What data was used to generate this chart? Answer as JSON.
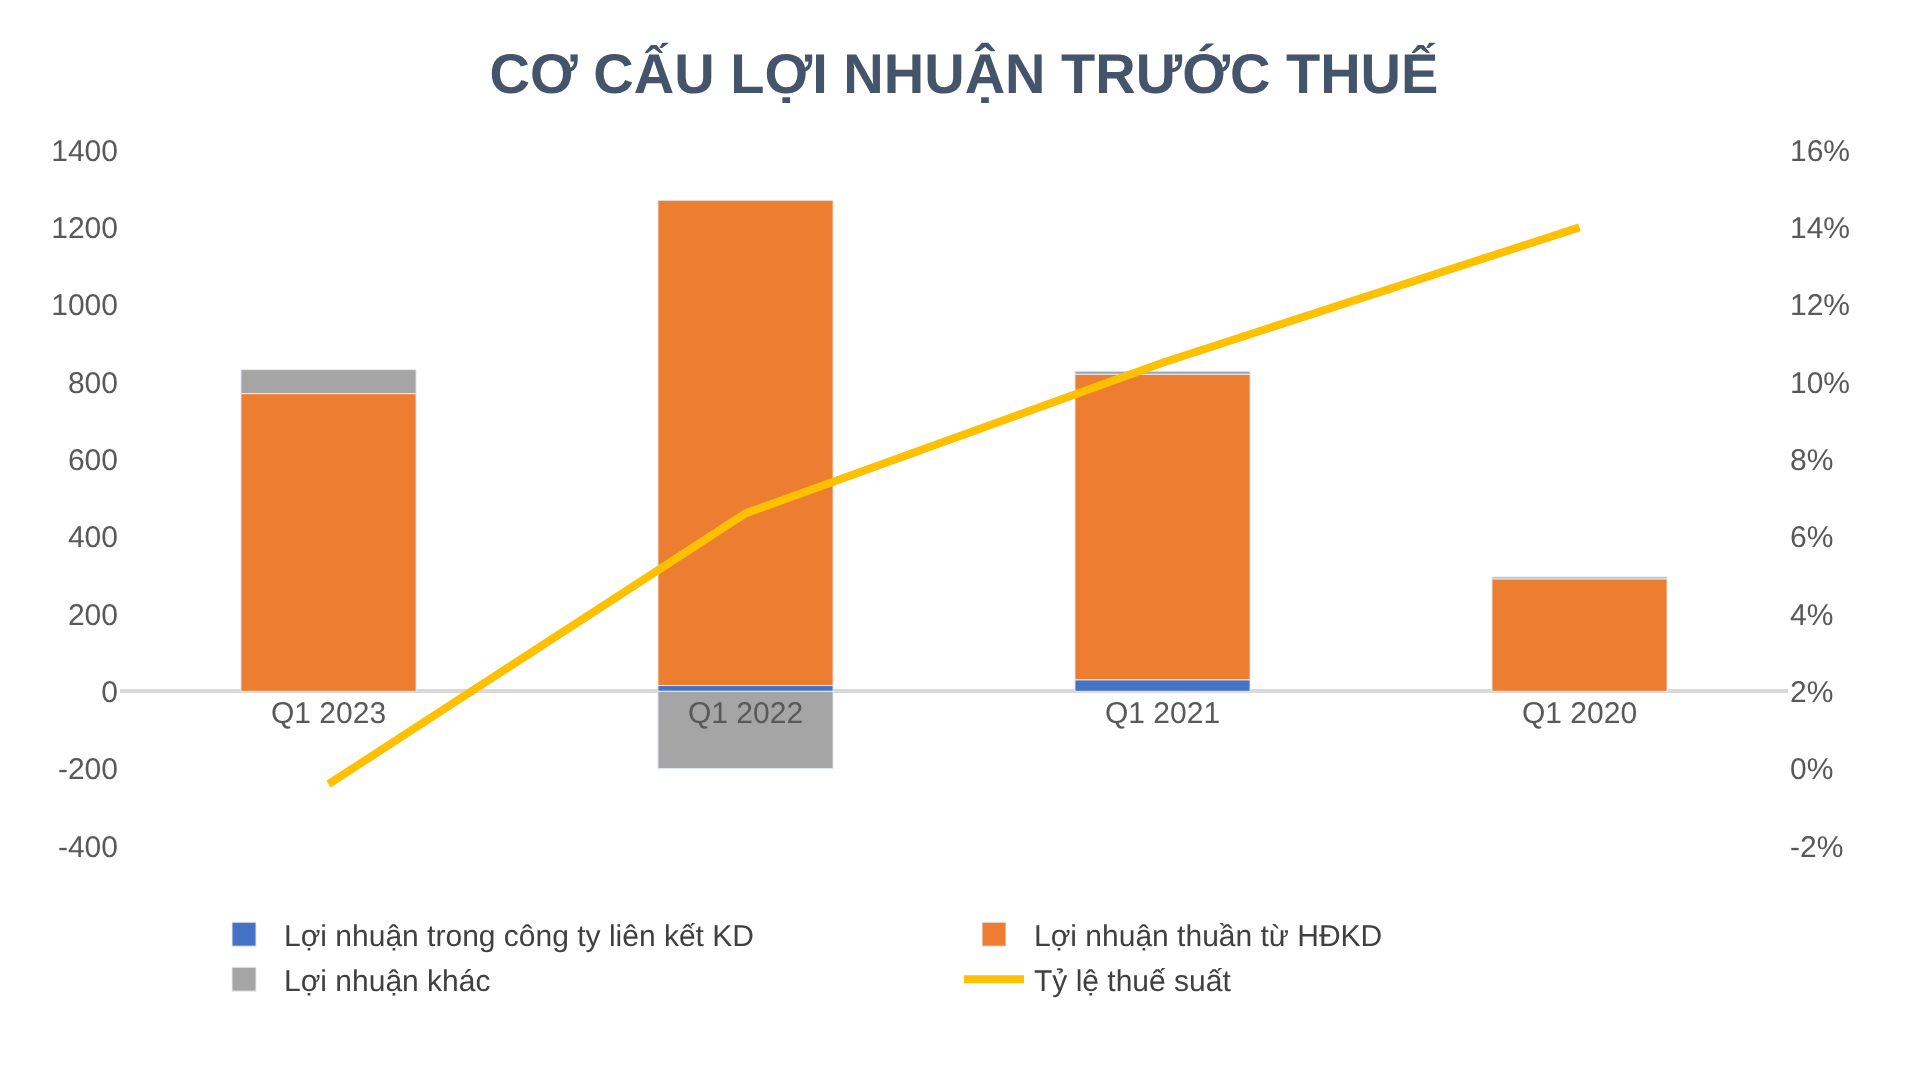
{
  "chart_data": {
    "type": "bar",
    "title": "CƠ CẤU LỢI NHUẬN TRƯỚC THUẾ",
    "stacked": true,
    "categories": [
      "Q1 2023",
      "Q1 2022",
      "Q1 2021",
      "Q1 2020"
    ],
    "series": [
      {
        "name": "Lợi nhuận trong công ty liên kết KD",
        "color": "#4472c4",
        "values": [
          0,
          15,
          30,
          0
        ]
      },
      {
        "name": "Lợi nhuận thuần từ HĐKD",
        "color": "#ed7d31",
        "values": [
          770,
          1255,
          790,
          291
        ]
      },
      {
        "name": "Lợi nhuận khác",
        "color": "#a5a5a5",
        "values": [
          62,
          -200,
          8,
          5
        ]
      },
      {
        "name": "Tỷ lệ thuế suất",
        "color": "#ffc000",
        "type": "line",
        "axis": "y2",
        "values": [
          -0.4,
          6.6,
          10.5,
          14.0
        ]
      }
    ],
    "ylim": [
      -400,
      1400
    ],
    "yticks": [
      -400,
      -200,
      0,
      200,
      400,
      600,
      800,
      1000,
      1200,
      1400
    ],
    "y2lim": [
      -2,
      16
    ],
    "y2ticks": [
      {
        "value": -2,
        "label": "-2%"
      },
      {
        "value": 0,
        "label": "0%"
      },
      {
        "value": 2,
        "label": "2%"
      },
      {
        "value": 4,
        "label": "4%"
      },
      {
        "value": 6,
        "label": "6%"
      },
      {
        "value": 8,
        "label": "8%"
      },
      {
        "value": 10,
        "label": "10%"
      },
      {
        "value": 12,
        "label": "12%"
      },
      {
        "value": 14,
        "label": "14%"
      },
      {
        "value": 16,
        "label": "16%"
      }
    ],
    "legend": "bottom",
    "marker": "none",
    "line_style": "solid"
  }
}
